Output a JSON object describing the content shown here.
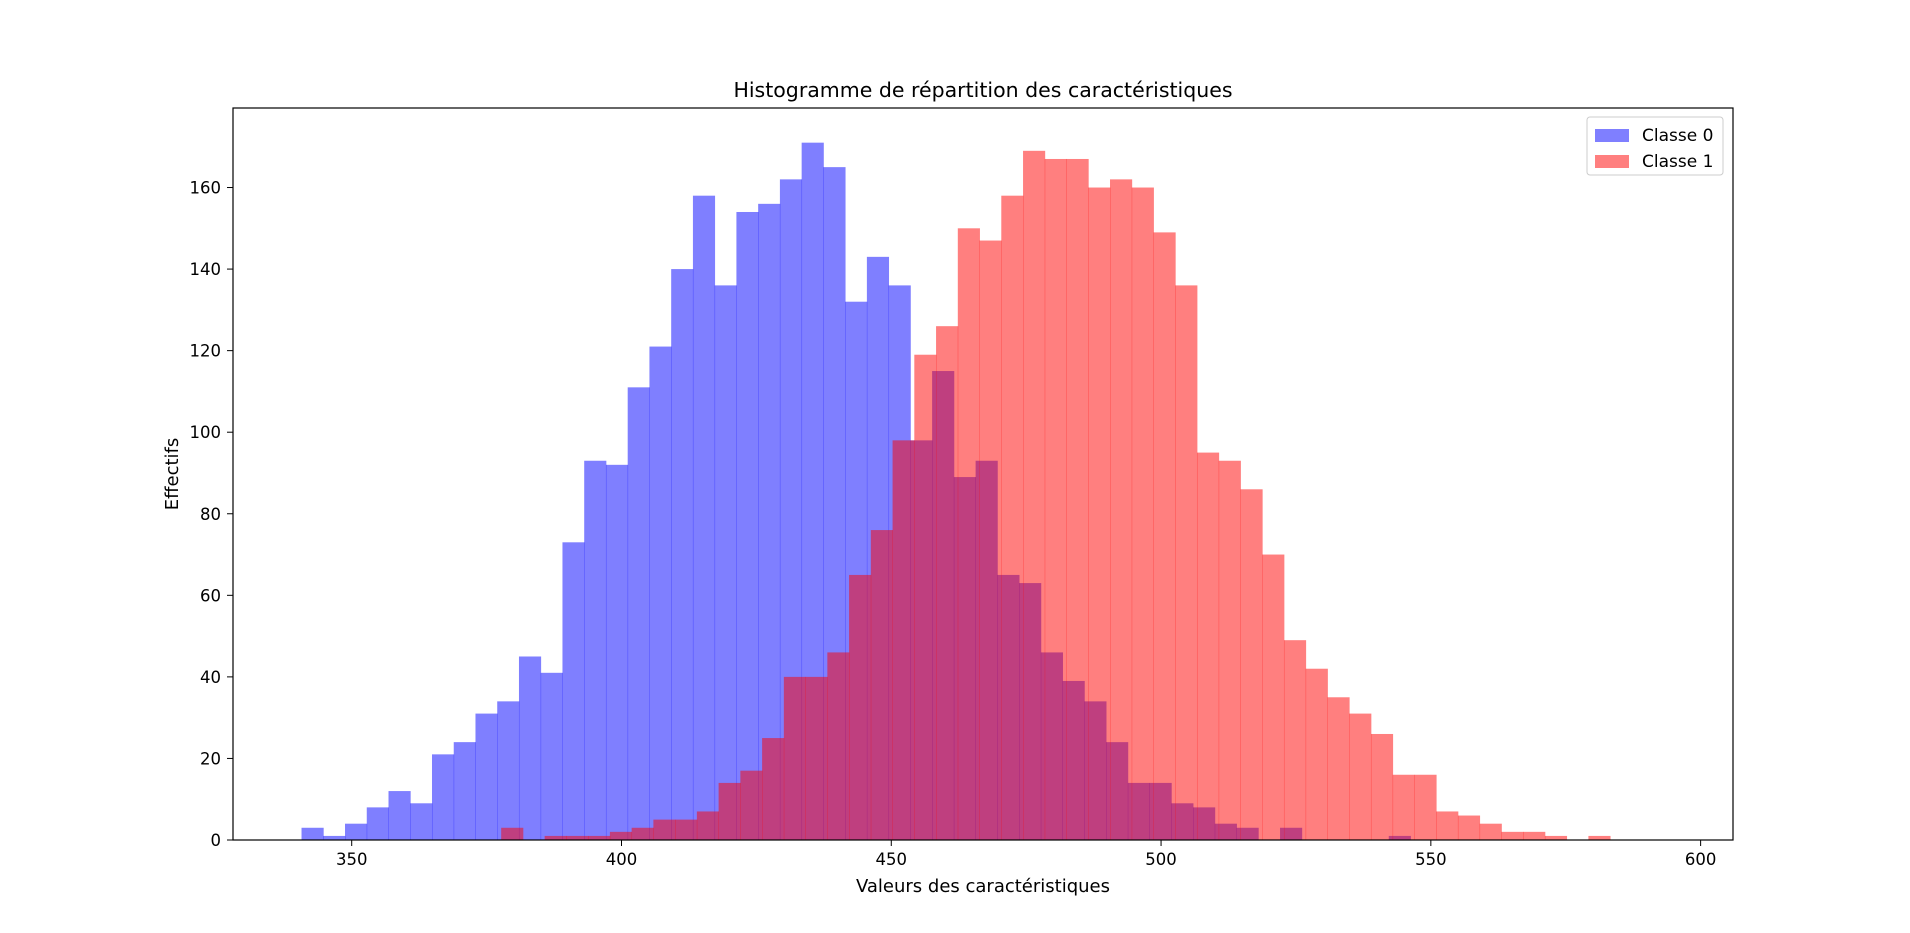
{
  "chart_data": {
    "type": "bar",
    "title": "Histogramme de répartition des caractéristiques",
    "xlabel": "Valeurs des caractéristiques",
    "ylabel": "Effectifs",
    "xlim": [
      328,
      606
    ],
    "ylim": [
      0,
      179.5
    ],
    "xticks": [
      350,
      400,
      450,
      500,
      550,
      600
    ],
    "yticks": [
      0,
      20,
      40,
      60,
      80,
      100,
      120,
      140,
      160
    ],
    "grid": false,
    "legend_position": "top-right",
    "series": [
      {
        "name": "Classe 0",
        "color": "#0000ff",
        "alpha": 0.5,
        "bin_start": 340.7,
        "bin_width": 4.03,
        "values": [
          3,
          1,
          4,
          8,
          12,
          9,
          21,
          24,
          31,
          34,
          45,
          41,
          73,
          93,
          92,
          111,
          121,
          140,
          158,
          136,
          154,
          156,
          162,
          171,
          165,
          132,
          143,
          136,
          98,
          115,
          89,
          93,
          65,
          63,
          46,
          39,
          34,
          24,
          14,
          14,
          9,
          8,
          4,
          3,
          0,
          3,
          0,
          0,
          0,
          0,
          1
        ]
      },
      {
        "name": "Classe 1",
        "color": "#ff0000",
        "alpha": 0.5,
        "bin_start": 377.7,
        "bin_width": 4.03,
        "values": [
          3,
          0,
          1,
          1,
          1,
          2,
          3,
          5,
          5,
          7,
          14,
          17,
          25,
          40,
          40,
          46,
          65,
          76,
          98,
          119,
          126,
          150,
          147,
          158,
          169,
          167,
          167,
          160,
          162,
          160,
          149,
          136,
          95,
          93,
          86,
          70,
          49,
          42,
          35,
          31,
          26,
          16,
          16,
          7,
          6,
          4,
          2,
          2,
          1,
          0,
          1
        ]
      }
    ],
    "overlap_color": "#bf3f7f"
  }
}
